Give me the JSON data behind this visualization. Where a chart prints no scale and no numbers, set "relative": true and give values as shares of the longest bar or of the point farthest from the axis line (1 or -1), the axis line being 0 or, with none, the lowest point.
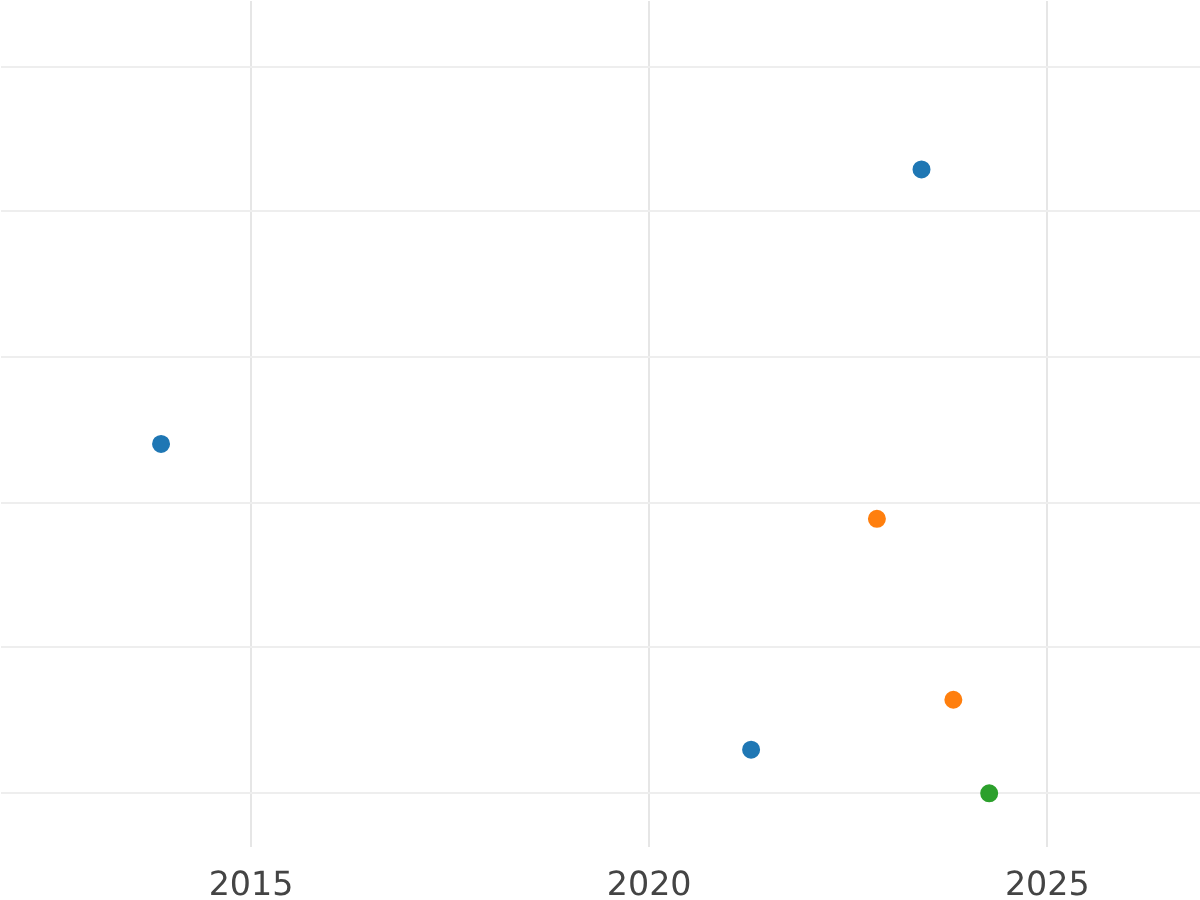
{
  "chart_data": {
    "type": "scatter",
    "relative": true,
    "grid": true,
    "marker": "circle",
    "xlim": [
      2011.86,
      2026.93
    ],
    "xticks": [
      2015,
      2020,
      2025
    ],
    "series": [
      {
        "color": "#1f77b4",
        "x": [
          2013.87,
          2023.42,
          2021.28
        ],
        "values": [
          0.56,
          1,
          0.07
        ]
      },
      {
        "color": "#ff7f0e",
        "x": [
          2022.86,
          2023.82
        ],
        "values": [
          0.44,
          0.15
        ]
      },
      {
        "color": "#2ca02c",
        "x": [
          2024.27
        ],
        "values": [
          0
        ]
      }
    ]
  }
}
